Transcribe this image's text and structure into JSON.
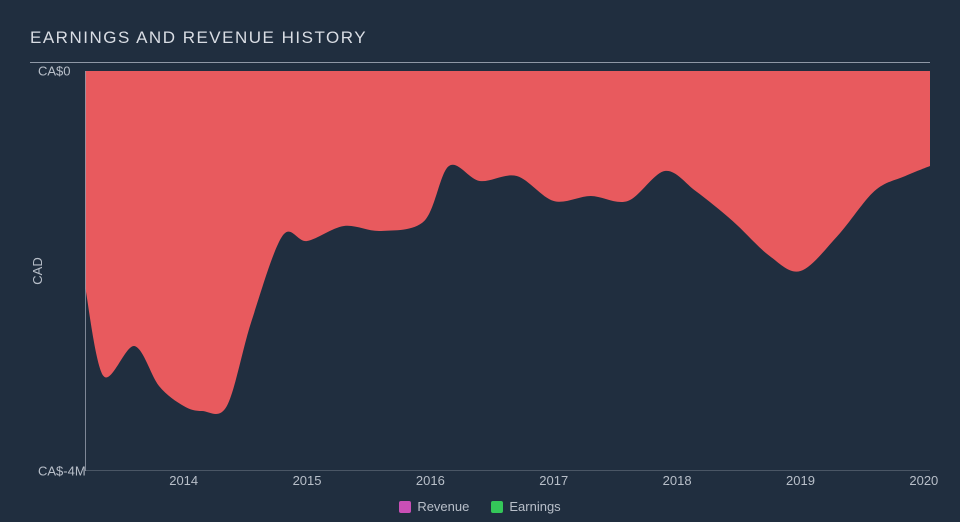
{
  "chart": {
    "type": "area",
    "title": "EARNINGS AND REVENUE HISTORY",
    "title_fontsize": 17,
    "title_color": "#d9dde4",
    "background_color": "#202e3f",
    "grid_color": "#8f98a6",
    "axis_text_color": "#b8bfc9",
    "axis_fontsize": 13,
    "ylabel": "CAD",
    "ylim": [
      -4,
      0
    ],
    "ytick_labels": [
      "CA$0",
      "CA$-4M"
    ],
    "ytick_positions": [
      0,
      -4
    ],
    "xlim": [
      2013.2,
      2020.05
    ],
    "xtick_labels": [
      "2014",
      "2015",
      "2016",
      "2017",
      "2018",
      "2019",
      "2020"
    ],
    "xtick_positions": [
      2014,
      2015,
      2016,
      2017,
      2018,
      2019,
      2020
    ],
    "series": [
      {
        "name": "Earnings",
        "fill_color": "#e85a5e",
        "fill_opacity": 1.0,
        "legend_swatch": "#34c759",
        "x": [
          2013.2,
          2013.35,
          2013.6,
          2013.8,
          2014.0,
          2014.15,
          2014.35,
          2014.55,
          2014.8,
          2015.0,
          2015.3,
          2015.6,
          2015.95,
          2016.15,
          2016.4,
          2016.7,
          2017.0,
          2017.3,
          2017.6,
          2017.9,
          2018.15,
          2018.45,
          2018.75,
          2019.0,
          2019.3,
          2019.6,
          2019.85,
          2020.05
        ],
        "y": [
          -2.15,
          -3.05,
          -2.75,
          -3.15,
          -3.35,
          -3.4,
          -3.35,
          -2.5,
          -1.65,
          -1.7,
          -1.55,
          -1.6,
          -1.5,
          -0.95,
          -1.1,
          -1.05,
          -1.3,
          -1.25,
          -1.3,
          -1.0,
          -1.2,
          -1.5,
          -1.85,
          -2.0,
          -1.65,
          -1.2,
          -1.05,
          -0.95
        ]
      },
      {
        "name": "Revenue",
        "fill_color": "#c94fb6",
        "fill_opacity": 1.0,
        "legend_swatch": "#c94fb6",
        "x": [
          2013.2,
          2020.05
        ],
        "y": [
          0,
          0
        ]
      }
    ],
    "legend_text_color": "#b8bfc9",
    "legend_position": "bottom-center"
  }
}
